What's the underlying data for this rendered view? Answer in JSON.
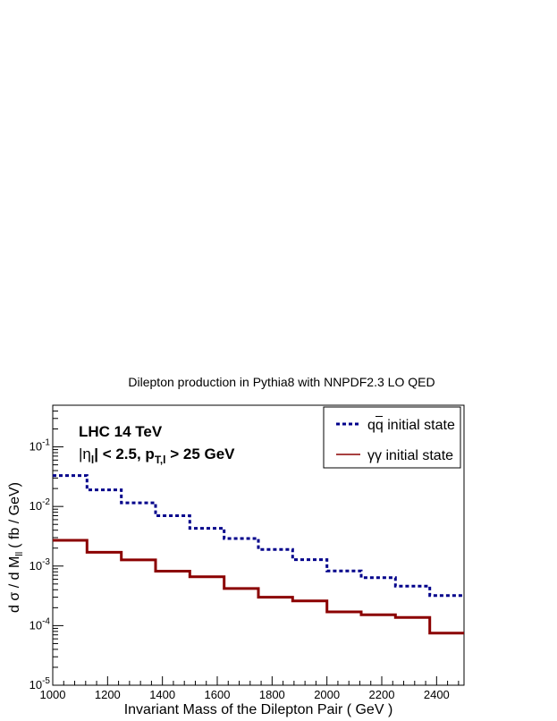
{
  "chart_data": {
    "type": "line",
    "title": "Dilepton production in Pythia8 with NNPDF2.3 LO QED",
    "xlabel": "Invariant Mass of the Dilepton Pair ( GeV )",
    "ylabel_main": "d σ / d M",
    "ylabel_sub": "ll",
    "ylabel_unit": "( fb / GeV)",
    "xlim": [
      1000,
      2500
    ],
    "ylim": [
      1e-05,
      0.5
    ],
    "yscale": "log",
    "grid": false,
    "legend_position": "top-right",
    "x_ticks": [
      1000,
      1200,
      1400,
      1600,
      1800,
      2000,
      2200,
      2400
    ],
    "y_ticks": [
      {
        "value": 1e-05,
        "base": "10",
        "exp": "-5"
      },
      {
        "value": 0.0001,
        "base": "10",
        "exp": "-4"
      },
      {
        "value": 0.001,
        "base": "10",
        "exp": "-3"
      },
      {
        "value": 0.01,
        "base": "10",
        "exp": "-2"
      },
      {
        "value": 0.1,
        "base": "10",
        "exp": "-1"
      }
    ],
    "bin_edges": [
      1000,
      1125,
      1250,
      1375,
      1500,
      1625,
      1750,
      1875,
      2000,
      2125,
      2250,
      2375,
      2500
    ],
    "series": [
      {
        "name": "q q̄ initial state",
        "legend_main": "qq",
        "legend_suffix": " initial state",
        "color": "#00008b",
        "style": "dashed",
        "values": [
          0.033,
          0.019,
          0.0115,
          0.007,
          0.0043,
          0.0029,
          0.0019,
          0.00128,
          0.00083,
          0.00064,
          0.00046,
          0.00032
        ]
      },
      {
        "name": "γγ initial state",
        "legend_main": "γγ",
        "legend_suffix": " initial state",
        "color": "#8b0000",
        "style": "solid",
        "values": [
          0.0027,
          0.0017,
          0.00127,
          0.00082,
          0.00066,
          0.00042,
          0.0003,
          0.00026,
          0.00017,
          0.000152,
          0.000137,
          7.5e-05
        ]
      }
    ],
    "annotations": {
      "line1": "LHC 14 TeV",
      "eta_sym": "|η",
      "eta_sub": "l",
      "eta_rest": "| < 2.5, p",
      "pt_sub": "T,l",
      "pt_rest": " > 25 GeV"
    }
  }
}
